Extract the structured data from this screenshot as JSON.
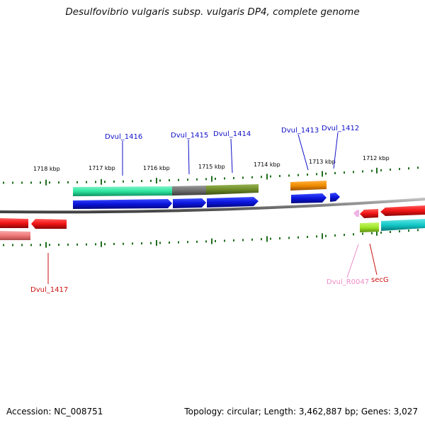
{
  "title": "Desulfovibrio vulgaris subsp. vulgaris DP4, complete genome",
  "footer": {
    "accession": "Accession: NC_008751",
    "summary": "Topology: circular; Length: 3,462,887 bp; Genes: 3,027"
  },
  "scale_labels": {
    "s1718": "1718 kbp",
    "s1717": "1717 kbp",
    "s1716": "1716 kbp",
    "s1715": "1715 kbp",
    "s1714": "1714 kbp",
    "s1713": "1713 kbp",
    "s1712": "1712 kbp"
  },
  "gene_labels": {
    "dvul_1416": "Dvul_1416",
    "dvul_1415": "Dvul_1415",
    "dvul_1414": "Dvul_1414",
    "dvul_1413": "Dvul_1413",
    "dvul_1412": "Dvul_1412",
    "dvul_1417": "Dvul_1417",
    "dvul_r0047": "Dvul_R0047",
    "secg": "secG"
  },
  "colors": {
    "forward_label": "#1010c8",
    "reverse_label": "#cc1010",
    "rna_label": "#f08cc8",
    "cds_blue": "#0a14dc",
    "cds_red": "#f01414",
    "backbone": "#808080",
    "ticks": "#1e6e1e",
    "teal": "#2ee6a0",
    "grey": "#6e6e6e",
    "olive": "#6e8c28",
    "orange": "#f08c00",
    "lime": "#a0e628",
    "cyan": "#14c8c8",
    "pink_arrow": "#f0b4e6",
    "light_red": "#f07878"
  }
}
